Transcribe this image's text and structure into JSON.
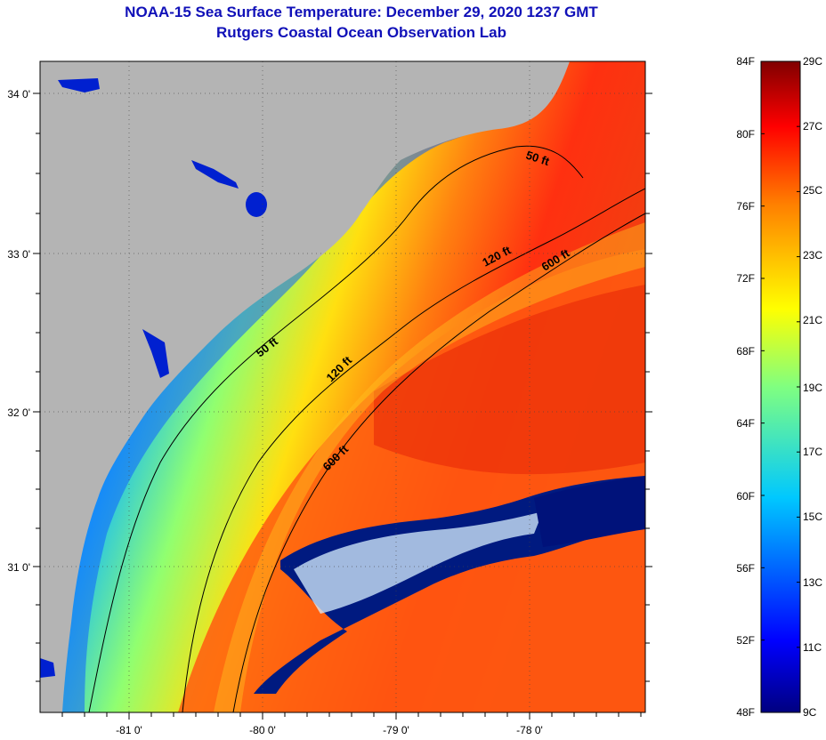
{
  "title": {
    "line1": "NOAA-15 Sea Surface Temperature:  December 29, 2020 1237 GMT",
    "line2": "Rutgers Coastal Ocean Observation Lab"
  },
  "map": {
    "lon_labels": [
      "-81 0'",
      "-80 0'",
      "-79 0'",
      "-78 0'"
    ],
    "lat_labels": [
      "34 0'",
      "33 0'",
      "32 0'",
      "31 0'"
    ],
    "contour_labels": [
      "50 ft",
      "120 ft",
      "600 ft",
      "50 ft",
      "120 ft",
      "600 ft"
    ],
    "land_color": "#b4b4b4"
  },
  "colorbar": {
    "fahrenheit": [
      "84F",
      "80F",
      "76F",
      "72F",
      "68F",
      "64F",
      "60F",
      "56F",
      "52F",
      "48F"
    ],
    "celsius": [
      "29C",
      "27C",
      "25C",
      "23C",
      "21C",
      "19C",
      "17C",
      "15C",
      "13C",
      "11C",
      "9C"
    ]
  }
}
